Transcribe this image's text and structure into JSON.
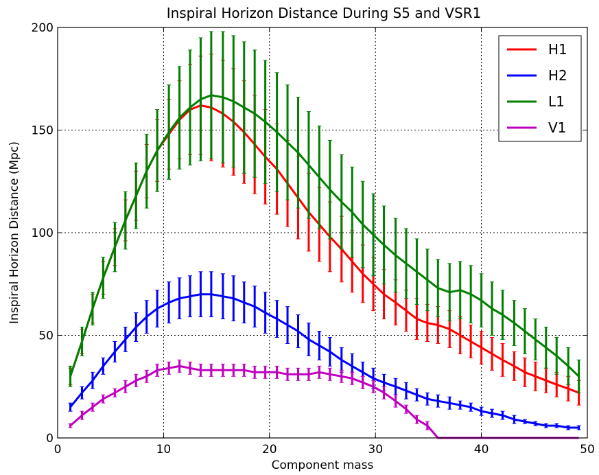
{
  "chart_data": {
    "type": "line",
    "title": "Inspiral Horizon Distance During S5 and VSR1",
    "xlabel": "Component mass",
    "ylabel": "Inspiral Horizon Distance (Mpc)",
    "xlim": [
      0,
      50
    ],
    "ylim": [
      0,
      200
    ],
    "xticks": [
      0,
      10,
      20,
      30,
      40,
      50
    ],
    "yticks": [
      0,
      50,
      100,
      150,
      200
    ],
    "xtick_labels": [
      "0",
      "10",
      "20",
      "30",
      "40",
      "50"
    ],
    "ytick_labels": [
      "0",
      "50",
      "100",
      "150",
      "200"
    ],
    "grid": true,
    "legend_position": "top-right",
    "x": [
      1.2,
      2.3,
      3.3,
      4.3,
      5.4,
      6.4,
      7.4,
      8.4,
      9.4,
      10.5,
      11.5,
      12.5,
      13.5,
      14.5,
      15.6,
      16.6,
      17.6,
      18.6,
      19.6,
      20.7,
      21.7,
      22.7,
      23.7,
      24.7,
      25.7,
      26.8,
      27.8,
      28.8,
      29.8,
      30.8,
      31.9,
      32.9,
      33.9,
      34.9,
      35.9,
      37.0,
      38.0,
      39.0,
      40.0,
      41.0,
      42.0,
      43.1,
      44.1,
      45.1,
      46.1,
      47.1,
      48.2,
      49.2
    ],
    "series": [
      {
        "name": "H1",
        "color": "#ff0000",
        "y": [
          30,
          47,
          63,
          78,
          93,
          106,
          118,
          130,
          140,
          148,
          155,
          160,
          162,
          161,
          158,
          154,
          149,
          143,
          137,
          131,
          124,
          117,
          110,
          104,
          98,
          92,
          86,
          80,
          75,
          70,
          66,
          62,
          58,
          56,
          55,
          53,
          50,
          47,
          44,
          41,
          38,
          35,
          32,
          30,
          28,
          26,
          24,
          22
        ],
        "err": [
          4,
          6,
          7,
          8,
          9,
          10,
          12,
          13,
          15,
          17,
          19,
          22,
          24,
          26,
          26,
          26,
          25,
          24,
          23,
          22,
          21,
          20,
          19,
          18,
          17,
          16,
          15,
          14,
          13,
          12,
          11,
          10,
          10,
          9,
          9,
          9,
          9,
          8,
          8,
          8,
          8,
          7,
          7,
          7,
          6,
          6,
          6,
          6
        ]
      },
      {
        "name": "H2",
        "color": "#0000ff",
        "y": [
          15,
          22,
          28,
          35,
          42,
          48,
          54,
          59,
          63,
          66,
          68,
          69,
          70,
          70,
          69,
          68,
          66,
          64,
          61,
          58,
          55,
          52,
          48,
          45,
          42,
          38,
          35,
          32,
          29,
          27,
          25,
          23,
          21,
          19,
          18,
          17,
          16,
          15,
          13,
          12,
          11,
          9,
          8,
          7,
          6,
          6,
          5,
          5
        ],
        "err": [
          2,
          3,
          4,
          4,
          5,
          6,
          7,
          8,
          9,
          10,
          10,
          10,
          11,
          11,
          11,
          11,
          10,
          10,
          10,
          9,
          9,
          8,
          8,
          7,
          7,
          6,
          6,
          5,
          5,
          4,
          4,
          4,
          3,
          3,
          3,
          3,
          2,
          2,
          2,
          2,
          2,
          2,
          1,
          1,
          1,
          1,
          1,
          1
        ]
      },
      {
        "name": "L1",
        "color": "#008000",
        "y": [
          30,
          47,
          63,
          78,
          93,
          106,
          118,
          130,
          140,
          149,
          156,
          161,
          165,
          167,
          166,
          164,
          161,
          158,
          154,
          149,
          144,
          139,
          133,
          127,
          121,
          115,
          110,
          104,
          99,
          94,
          89,
          85,
          81,
          77,
          73,
          71,
          72,
          70,
          67,
          63,
          60,
          56,
          52,
          48,
          44,
          40,
          35,
          30
        ],
        "err": [
          5,
          7,
          8,
          10,
          12,
          14,
          16,
          18,
          20,
          23,
          25,
          28,
          30,
          31,
          32,
          32,
          32,
          31,
          30,
          29,
          28,
          27,
          26,
          25,
          24,
          23,
          22,
          21,
          20,
          19,
          18,
          17,
          16,
          15,
          14,
          14,
          14,
          14,
          13,
          13,
          12,
          11,
          11,
          10,
          10,
          9,
          9,
          8
        ]
      },
      {
        "name": "V1",
        "color": "#bf00bf",
        "y": [
          6,
          11,
          15,
          19,
          22,
          25,
          28,
          30,
          33,
          34,
          35,
          34,
          33,
          33,
          33,
          33,
          33,
          32,
          32,
          32,
          31,
          31,
          31,
          32,
          31,
          30,
          29,
          27,
          25,
          22,
          18,
          14,
          9,
          6,
          0,
          0,
          0,
          0,
          0,
          0,
          0,
          0,
          0,
          0,
          0,
          0,
          0,
          0
        ],
        "err": [
          1,
          2,
          2,
          2,
          2,
          3,
          3,
          3,
          3,
          3,
          3,
          3,
          3,
          3,
          3,
          3,
          3,
          3,
          3,
          3,
          3,
          3,
          3,
          3,
          3,
          3,
          3,
          3,
          3,
          3,
          3,
          2,
          2,
          2,
          0,
          0,
          0,
          0,
          0,
          0,
          0,
          0,
          0,
          0,
          0,
          0,
          0,
          0
        ]
      }
    ]
  }
}
